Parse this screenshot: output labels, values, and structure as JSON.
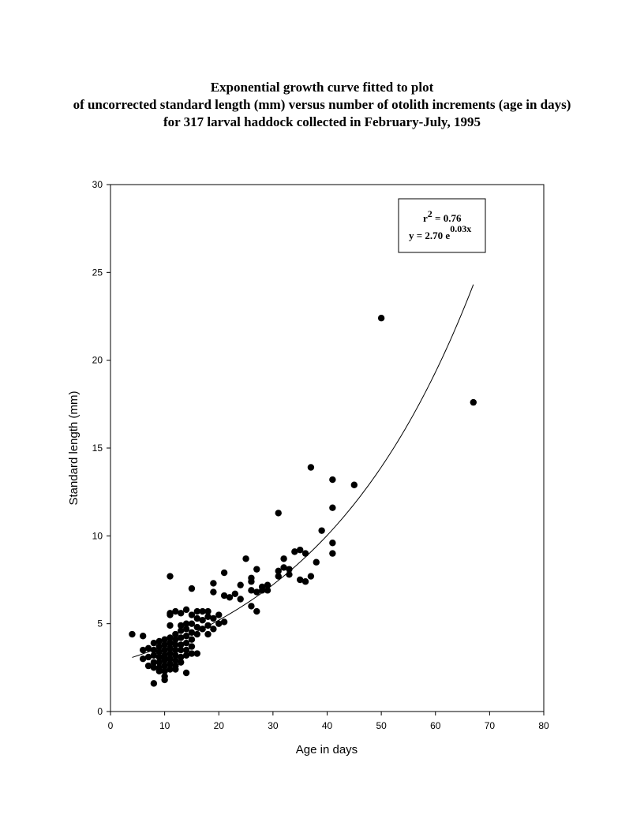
{
  "title_lines": [
    "Exponential growth curve fitted to plot",
    "of uncorrected standard length (mm) versus number of otolith increments (age in days)",
    "for 317 larval haddock collected in February-July, 1995"
  ],
  "chart_data": {
    "type": "scatter",
    "xlabel": "Age in days",
    "ylabel": "Standard length (mm)",
    "xlim": [
      0,
      80
    ],
    "ylim": [
      0,
      30
    ],
    "x_ticks": [
      0,
      10,
      20,
      30,
      40,
      50,
      60,
      70,
      80
    ],
    "y_ticks": [
      0,
      5,
      10,
      15,
      20,
      25,
      30
    ],
    "grid": false,
    "legend": {
      "r2_text": "r",
      "r2_sup": "2",
      "r2_value": " = 0.76",
      "eqn_text": "y = 2.70 e",
      "eqn_sup": "0.03x"
    },
    "fit": {
      "type": "exponential",
      "a": 2.7,
      "b": 0.0328,
      "x_range": [
        4,
        67
      ]
    },
    "series": [
      {
        "points": [
          [
            4,
            4.4
          ],
          [
            6,
            4.3
          ],
          [
            6,
            3.5
          ],
          [
            6,
            3.0
          ],
          [
            7,
            3.6
          ],
          [
            7,
            3.1
          ],
          [
            7,
            2.6
          ],
          [
            8,
            3.9
          ],
          [
            8,
            3.5
          ],
          [
            8,
            3.2
          ],
          [
            8,
            2.8
          ],
          [
            8,
            2.5
          ],
          [
            8,
            1.6
          ],
          [
            9,
            4.0
          ],
          [
            9,
            3.7
          ],
          [
            9,
            3.4
          ],
          [
            9,
            3.1
          ],
          [
            9,
            2.8
          ],
          [
            9,
            2.5
          ],
          [
            9,
            2.3
          ],
          [
            10,
            4.1
          ],
          [
            10,
            3.8
          ],
          [
            10,
            3.5
          ],
          [
            10,
            3.2
          ],
          [
            10,
            2.9
          ],
          [
            10,
            2.6
          ],
          [
            10,
            2.3
          ],
          [
            10,
            2.0
          ],
          [
            10,
            1.8
          ],
          [
            10,
            3.0
          ],
          [
            11,
            5.6
          ],
          [
            11,
            5.5
          ],
          [
            11,
            4.9
          ],
          [
            11,
            4.2
          ],
          [
            11,
            3.9
          ],
          [
            11,
            3.6
          ],
          [
            11,
            3.3
          ],
          [
            11,
            3.0
          ],
          [
            11,
            2.7
          ],
          [
            11,
            2.4
          ],
          [
            11,
            7.7
          ],
          [
            12,
            5.7
          ],
          [
            12,
            4.4
          ],
          [
            12,
            4.1
          ],
          [
            12,
            3.8
          ],
          [
            12,
            3.5
          ],
          [
            12,
            3.2
          ],
          [
            12,
            2.9
          ],
          [
            12,
            2.6
          ],
          [
            12,
            2.4
          ],
          [
            13,
            5.6
          ],
          [
            13,
            4.9
          ],
          [
            13,
            4.6
          ],
          [
            13,
            4.2
          ],
          [
            13,
            3.8
          ],
          [
            13,
            3.5
          ],
          [
            13,
            3.1
          ],
          [
            13,
            2.8
          ],
          [
            14,
            5.8
          ],
          [
            14,
            5.0
          ],
          [
            14,
            4.7
          ],
          [
            14,
            4.3
          ],
          [
            14,
            3.9
          ],
          [
            14,
            3.5
          ],
          [
            14,
            3.2
          ],
          [
            14,
            2.2
          ],
          [
            15,
            7.0
          ],
          [
            15,
            5.5
          ],
          [
            15,
            5.0
          ],
          [
            15,
            4.5
          ],
          [
            15,
            4.1
          ],
          [
            15,
            3.7
          ],
          [
            15,
            3.3
          ],
          [
            16,
            5.7
          ],
          [
            16,
            5.3
          ],
          [
            16,
            4.8
          ],
          [
            16,
            4.4
          ],
          [
            16,
            3.3
          ],
          [
            17,
            5.7
          ],
          [
            17,
            5.2
          ],
          [
            17,
            4.7
          ],
          [
            18,
            5.7
          ],
          [
            18,
            5.4
          ],
          [
            18,
            4.9
          ],
          [
            18,
            4.4
          ],
          [
            19,
            7.3
          ],
          [
            19,
            6.8
          ],
          [
            19,
            5.3
          ],
          [
            19,
            4.7
          ],
          [
            20,
            5.5
          ],
          [
            20,
            5.0
          ],
          [
            21,
            7.9
          ],
          [
            21,
            6.6
          ],
          [
            21,
            5.1
          ],
          [
            22,
            6.5
          ],
          [
            23,
            6.7
          ],
          [
            24,
            7.2
          ],
          [
            24,
            6.4
          ],
          [
            25,
            8.7
          ],
          [
            26,
            7.6
          ],
          [
            26,
            7.4
          ],
          [
            26,
            6.9
          ],
          [
            26,
            6.0
          ],
          [
            27,
            8.1
          ],
          [
            27,
            6.8
          ],
          [
            27,
            5.7
          ],
          [
            28,
            7.1
          ],
          [
            28,
            6.9
          ],
          [
            29,
            7.2
          ],
          [
            29,
            6.9
          ],
          [
            31,
            11.3
          ],
          [
            31,
            8.0
          ],
          [
            31,
            7.7
          ],
          [
            32,
            8.7
          ],
          [
            32,
            8.2
          ],
          [
            33,
            8.1
          ],
          [
            33,
            7.8
          ],
          [
            34,
            9.1
          ],
          [
            35,
            9.2
          ],
          [
            35,
            7.5
          ],
          [
            36,
            9.0
          ],
          [
            36,
            7.4
          ],
          [
            37,
            13.9
          ],
          [
            37,
            7.7
          ],
          [
            38,
            8.5
          ],
          [
            39,
            10.3
          ],
          [
            41,
            13.2
          ],
          [
            41,
            11.6
          ],
          [
            41,
            9.6
          ],
          [
            41,
            9.0
          ],
          [
            45,
            12.9
          ],
          [
            50,
            22.4
          ],
          [
            67,
            17.6
          ]
        ]
      }
    ]
  }
}
